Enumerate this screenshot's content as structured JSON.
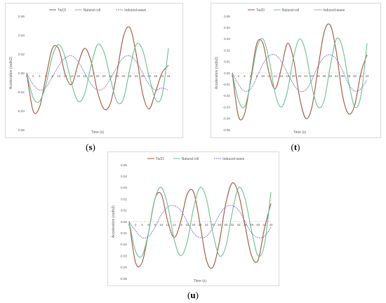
{
  "figure": {
    "captions": [
      "s",
      "t",
      "u"
    ]
  },
  "chart_data": [
    {
      "type": "line",
      "panel": "s",
      "title": "",
      "xlabel": "Time (s)",
      "ylabel": "Acceleration (rad/s2)",
      "ylim": [
        -0.06,
        0.06
      ],
      "yticks": [
        -0.06,
        -0.04,
        -0.02,
        0.0,
        0.02,
        0.04,
        0.06
      ],
      "ytick_labels": [
        "-0.06",
        "-0.04",
        "-0.02",
        "0.00",
        "0.02",
        "0.04",
        "0.06"
      ],
      "xlim": [
        0,
        44
      ],
      "xticks": [
        0,
        2,
        4,
        6,
        8,
        10,
        12,
        14,
        16,
        18,
        20,
        22,
        24,
        26,
        28,
        30,
        32,
        34,
        36,
        38,
        40,
        42,
        44
      ],
      "xtick_labels": [
        "0",
        "2",
        "4",
        "6",
        "8",
        "10",
        "12",
        "14",
        "16",
        "18",
        "20",
        "22",
        "24",
        "26",
        "28",
        "30",
        "32",
        "34",
        "36",
        "38",
        "40",
        "42",
        "44"
      ],
      "grid": false,
      "legend_position": "top",
      "series": [
        {
          "name": "Tw19",
          "color": "#a0523c",
          "dash": "solid",
          "x": [
            0,
            2,
            4,
            6,
            8,
            10,
            12,
            14,
            16,
            18,
            20,
            22,
            24,
            26,
            28,
            30,
            32,
            34,
            36,
            38,
            40,
            42,
            44
          ],
          "y": [
            0.0,
            -0.04,
            -0.036,
            -0.004,
            0.026,
            0.025,
            -0.002,
            -0.012,
            0.01,
            0.026,
            0.012,
            -0.02,
            -0.038,
            -0.032,
            0.0,
            0.038,
            0.048,
            0.02,
            -0.022,
            -0.038,
            -0.02,
            0.0,
            0.008
          ]
        },
        {
          "name": "Natural roll",
          "color": "#6cbf8f",
          "dash": "solid",
          "x": [
            0,
            2,
            4,
            6,
            8,
            10,
            12,
            14,
            16,
            18,
            20,
            22,
            24,
            26,
            28,
            30,
            32,
            34,
            36,
            38,
            40,
            42,
            44
          ],
          "y": [
            0.0,
            -0.026,
            -0.03,
            -0.012,
            0.018,
            0.03,
            0.016,
            -0.012,
            -0.03,
            -0.022,
            0.008,
            0.03,
            0.022,
            -0.006,
            -0.03,
            -0.028,
            0.004,
            0.03,
            0.024,
            -0.004,
            -0.028,
            -0.024,
            0.026
          ]
        },
        {
          "name": "Induced-wave",
          "color": "#6a5ab8",
          "dash": "dashed",
          "x": [
            0,
            2,
            4,
            6,
            8,
            10,
            12,
            14,
            16,
            18,
            20,
            22,
            24,
            26,
            28,
            30,
            32,
            34,
            36,
            38,
            40,
            42,
            44
          ],
          "y": [
            0.0,
            -0.012,
            -0.018,
            -0.015,
            -0.004,
            0.008,
            0.016,
            0.018,
            0.012,
            0.0,
            -0.012,
            -0.018,
            -0.016,
            -0.006,
            0.006,
            0.016,
            0.018,
            0.012,
            0.0,
            -0.012,
            -0.018,
            -0.016,
            -0.018
          ]
        }
      ]
    },
    {
      "type": "line",
      "panel": "t",
      "title": "",
      "xlabel": "Time (s)",
      "ylabel": "Acceleration (rad/s2)",
      "ylim": [
        -0.05,
        0.05
      ],
      "yticks": [
        -0.05,
        -0.04,
        -0.03,
        -0.02,
        -0.01,
        0.0,
        0.01,
        0.02,
        0.03,
        0.04,
        0.05
      ],
      "ytick_labels": [
        "-0.05",
        "-0.04",
        "-0.03",
        "-0.02",
        "-0.01",
        "0.00",
        "0.01",
        "0.02",
        "0.03",
        "0.04",
        "0.05"
      ],
      "xlim": [
        0,
        44
      ],
      "xticks": [
        0,
        2,
        4,
        6,
        8,
        10,
        12,
        14,
        16,
        18,
        20,
        22,
        24,
        26,
        28,
        30,
        32,
        34,
        36,
        38,
        40,
        42,
        44
      ],
      "xtick_labels": [
        "0",
        "2",
        "4",
        "6",
        "8",
        "10",
        "12",
        "14",
        "16",
        "18",
        "20",
        "22",
        "24",
        "26",
        "28",
        "30",
        "32",
        "34",
        "36",
        "38",
        "40",
        "42",
        "44"
      ],
      "grid": false,
      "legend_position": "top",
      "series": [
        {
          "name": "Tw20",
          "color": "#a0523c",
          "dash": "solid",
          "x": [
            0,
            2,
            4,
            6,
            8,
            10,
            12,
            14,
            16,
            18,
            20,
            22,
            24,
            26,
            28,
            30,
            32,
            34,
            36,
            38,
            40,
            42,
            44
          ],
          "y": [
            0.0,
            -0.038,
            -0.036,
            -0.006,
            0.026,
            0.026,
            0.0,
            -0.014,
            0.004,
            0.026,
            0.012,
            -0.022,
            -0.04,
            -0.03,
            0.004,
            0.036,
            0.042,
            0.018,
            -0.02,
            -0.036,
            -0.028,
            0.0,
            0.016
          ]
        },
        {
          "name": "Natural roll",
          "color": "#6cbf8f",
          "dash": "solid",
          "x": [
            0,
            2,
            4,
            6,
            8,
            10,
            12,
            14,
            16,
            18,
            20,
            22,
            24,
            26,
            28,
            30,
            32,
            34,
            36,
            38,
            40,
            42,
            44
          ],
          "y": [
            0.0,
            -0.024,
            -0.03,
            -0.008,
            0.022,
            0.03,
            0.012,
            -0.018,
            -0.03,
            -0.016,
            0.014,
            0.03,
            0.018,
            -0.012,
            -0.03,
            -0.024,
            0.006,
            0.03,
            0.022,
            -0.008,
            -0.03,
            -0.02,
            0.026
          ]
        },
        {
          "name": "Induced-wave",
          "color": "#6a5ab8",
          "dash": "dashed",
          "x": [
            0,
            2,
            4,
            6,
            8,
            10,
            12,
            14,
            16,
            18,
            20,
            22,
            24,
            26,
            28,
            30,
            32,
            34,
            36,
            38,
            40,
            42,
            44
          ],
          "y": [
            0.0,
            -0.01,
            -0.016,
            -0.014,
            -0.004,
            0.008,
            0.015,
            0.016,
            0.01,
            0.0,
            -0.01,
            -0.016,
            -0.015,
            -0.006,
            0.006,
            0.014,
            0.016,
            0.012,
            0.002,
            -0.01,
            -0.016,
            -0.014,
            -0.006
          ]
        }
      ]
    },
    {
      "type": "line",
      "panel": "u",
      "title": "",
      "xlabel": "Time (s)",
      "ylabel": "Acceleration (rad/s2)",
      "ylim": [
        -0.05,
        0.05
      ],
      "yticks": [
        -0.05,
        -0.04,
        -0.03,
        -0.02,
        -0.01,
        0.0,
        0.01,
        0.02,
        0.03,
        0.04,
        0.05
      ],
      "ytick_labels": [
        "-0.05",
        "-0.04",
        "-0.03",
        "-0.02",
        "-0.01",
        "0.00",
        "0.01",
        "0.02",
        "0.03",
        "0.04",
        "0.05"
      ],
      "xlim": [
        0,
        44
      ],
      "xticks": [
        0,
        2,
        4,
        6,
        8,
        10,
        12,
        14,
        16,
        18,
        20,
        22,
        24,
        26,
        28,
        30,
        32,
        34,
        36,
        38,
        40,
        42,
        44
      ],
      "xtick_labels": [
        "0",
        "2",
        "4",
        "6",
        "8",
        "10",
        "12",
        "14",
        "16",
        "18",
        "20",
        "22",
        "24",
        "26",
        "28",
        "30",
        "32",
        "34",
        "36",
        "38",
        "40",
        "42",
        "44"
      ],
      "grid": false,
      "legend_position": "top",
      "series": [
        {
          "name": "Tw21",
          "color": "#a0523c",
          "dash": "solid",
          "x": [
            0,
            2,
            4,
            6,
            8,
            10,
            12,
            14,
            16,
            18,
            20,
            22,
            24,
            26,
            28,
            30,
            32,
            34,
            36,
            38,
            40,
            42,
            44
          ],
          "y": [
            0.0,
            -0.036,
            -0.036,
            -0.01,
            0.02,
            0.024,
            0.0,
            -0.014,
            0.0,
            0.024,
            0.026,
            -0.002,
            -0.034,
            -0.04,
            -0.018,
            0.016,
            0.034,
            0.024,
            -0.004,
            -0.03,
            -0.034,
            -0.006,
            0.016
          ]
        },
        {
          "name": "Natural roll",
          "color": "#6cbf8f",
          "dash": "solid",
          "x": [
            0,
            2,
            4,
            6,
            8,
            10,
            12,
            14,
            16,
            18,
            20,
            22,
            24,
            26,
            28,
            30,
            32,
            34,
            36,
            38,
            40,
            42,
            44
          ],
          "y": [
            0.0,
            -0.026,
            -0.03,
            -0.01,
            0.02,
            0.03,
            0.014,
            -0.016,
            -0.03,
            -0.018,
            0.012,
            0.03,
            0.02,
            -0.01,
            -0.03,
            -0.022,
            0.008,
            0.03,
            0.02,
            -0.008,
            -0.03,
            -0.02,
            0.026
          ]
        },
        {
          "name": "Induced-wave",
          "color": "#6a5ab8",
          "dash": "dashed",
          "x": [
            0,
            2,
            4,
            6,
            8,
            10,
            12,
            14,
            16,
            18,
            20,
            22,
            24,
            26,
            28,
            30,
            32,
            34,
            36,
            38,
            40,
            42,
            44
          ],
          "y": [
            0.0,
            -0.008,
            -0.014,
            -0.013,
            -0.005,
            0.006,
            0.013,
            0.014,
            0.01,
            0.0,
            -0.01,
            -0.014,
            -0.013,
            -0.005,
            0.006,
            0.013,
            0.014,
            0.01,
            0.0,
            -0.01,
            -0.014,
            -0.013,
            -0.005
          ]
        }
      ]
    }
  ]
}
